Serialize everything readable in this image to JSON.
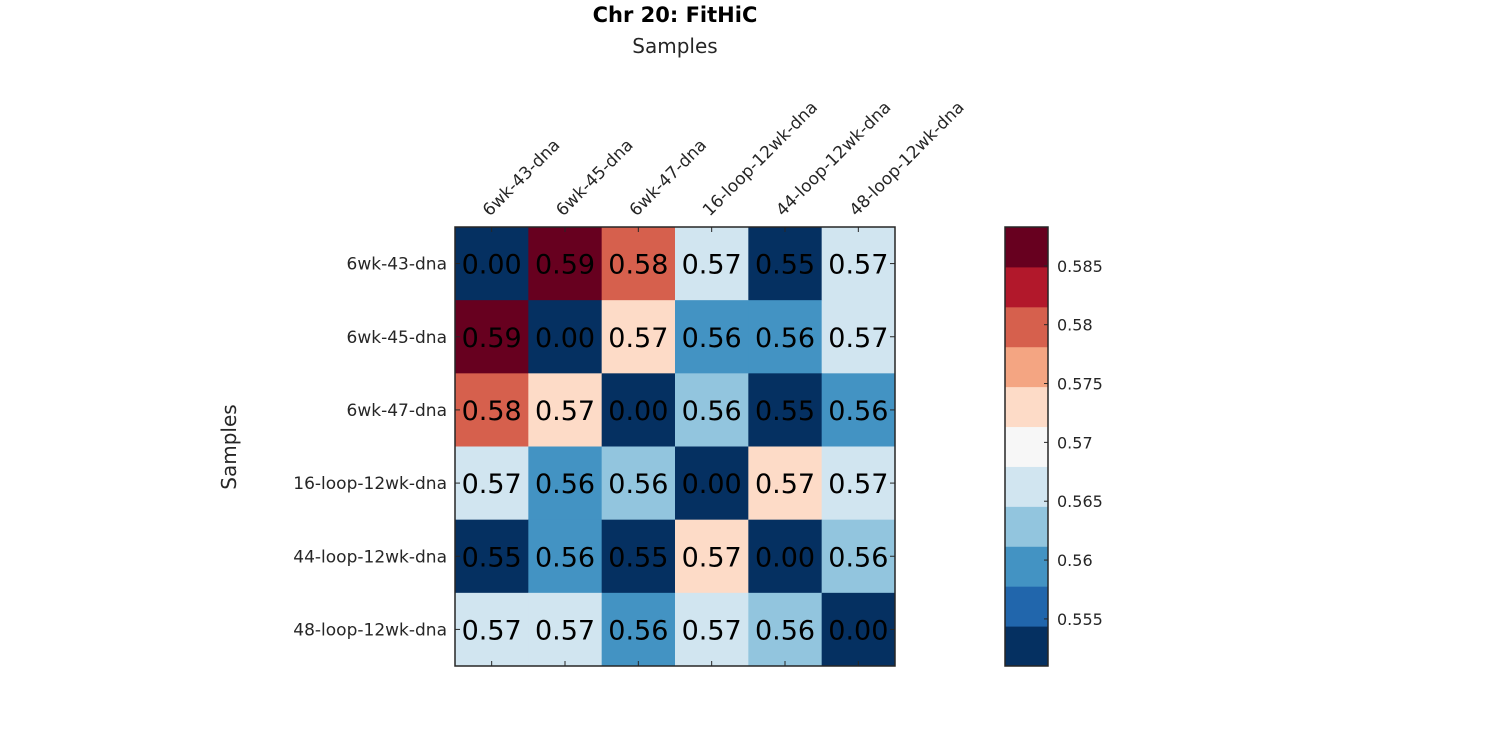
{
  "chart_data": {
    "type": "heatmap",
    "title": "Chr 20: FitHiC",
    "xlabel": "Samples",
    "ylabel": "Samples",
    "x_labels": [
      "6wk-43-dna",
      "6wk-45-dna",
      "6wk-47-dna",
      "16-loop-12wk-dna",
      "44-loop-12wk-dna",
      "48-loop-12wk-dna"
    ],
    "y_labels": [
      "6wk-43-dna",
      "6wk-45-dna",
      "6wk-47-dna",
      "16-loop-12wk-dna",
      "44-loop-12wk-dna",
      "48-loop-12wk-dna"
    ],
    "values": [
      [
        0.0,
        0.59,
        0.58,
        0.57,
        0.55,
        0.57
      ],
      [
        0.59,
        0.0,
        0.57,
        0.56,
        0.56,
        0.57
      ],
      [
        0.58,
        0.57,
        0.0,
        0.56,
        0.55,
        0.56
      ],
      [
        0.57,
        0.56,
        0.56,
        0.0,
        0.57,
        0.57
      ],
      [
        0.55,
        0.56,
        0.55,
        0.57,
        0.0,
        0.56
      ],
      [
        0.57,
        0.57,
        0.56,
        0.57,
        0.56,
        0.0
      ]
    ],
    "cell_labels": [
      [
        "0.00",
        "0.59",
        "0.58",
        "0.57",
        "0.55",
        "0.57"
      ],
      [
        "0.59",
        "0.00",
        "0.57",
        "0.56",
        "0.56",
        "0.57"
      ],
      [
        "0.58",
        "0.57",
        "0.00",
        "0.56",
        "0.55",
        "0.56"
      ],
      [
        "0.57",
        "0.56",
        "0.56",
        "0.00",
        "0.57",
        "0.57"
      ],
      [
        "0.55",
        "0.56",
        "0.55",
        "0.57",
        "0.00",
        "0.56"
      ],
      [
        "0.57",
        "0.57",
        "0.56",
        "0.57",
        "0.56",
        "0.00"
      ]
    ],
    "cell_color_band": [
      [
        0,
        10,
        8,
        4,
        0,
        4
      ],
      [
        10,
        0,
        6,
        2,
        2,
        4
      ],
      [
        8,
        6,
        0,
        3,
        0,
        2
      ],
      [
        4,
        2,
        3,
        0,
        6,
        4
      ],
      [
        0,
        2,
        0,
        6,
        0,
        3
      ],
      [
        4,
        4,
        2,
        4,
        3,
        0
      ]
    ],
    "colormap": "RdBu_r",
    "colorbar": {
      "range": [
        0.551,
        0.5883
      ],
      "bands": [
        "#053061",
        "#2166ac",
        "#4393c3",
        "#92c5de",
        "#d1e5f0",
        "#f7f7f7",
        "#fddbc7",
        "#f4a582",
        "#d6604d",
        "#b2182b",
        "#67001f"
      ],
      "ticks": [
        0.555,
        0.56,
        0.565,
        0.57,
        0.575,
        0.58,
        0.585
      ],
      "tick_labels": [
        "0.555",
        "0.56",
        "0.565",
        "0.57",
        "0.575",
        "0.58",
        "0.585"
      ],
      "placement": "right"
    },
    "grid": false
  }
}
